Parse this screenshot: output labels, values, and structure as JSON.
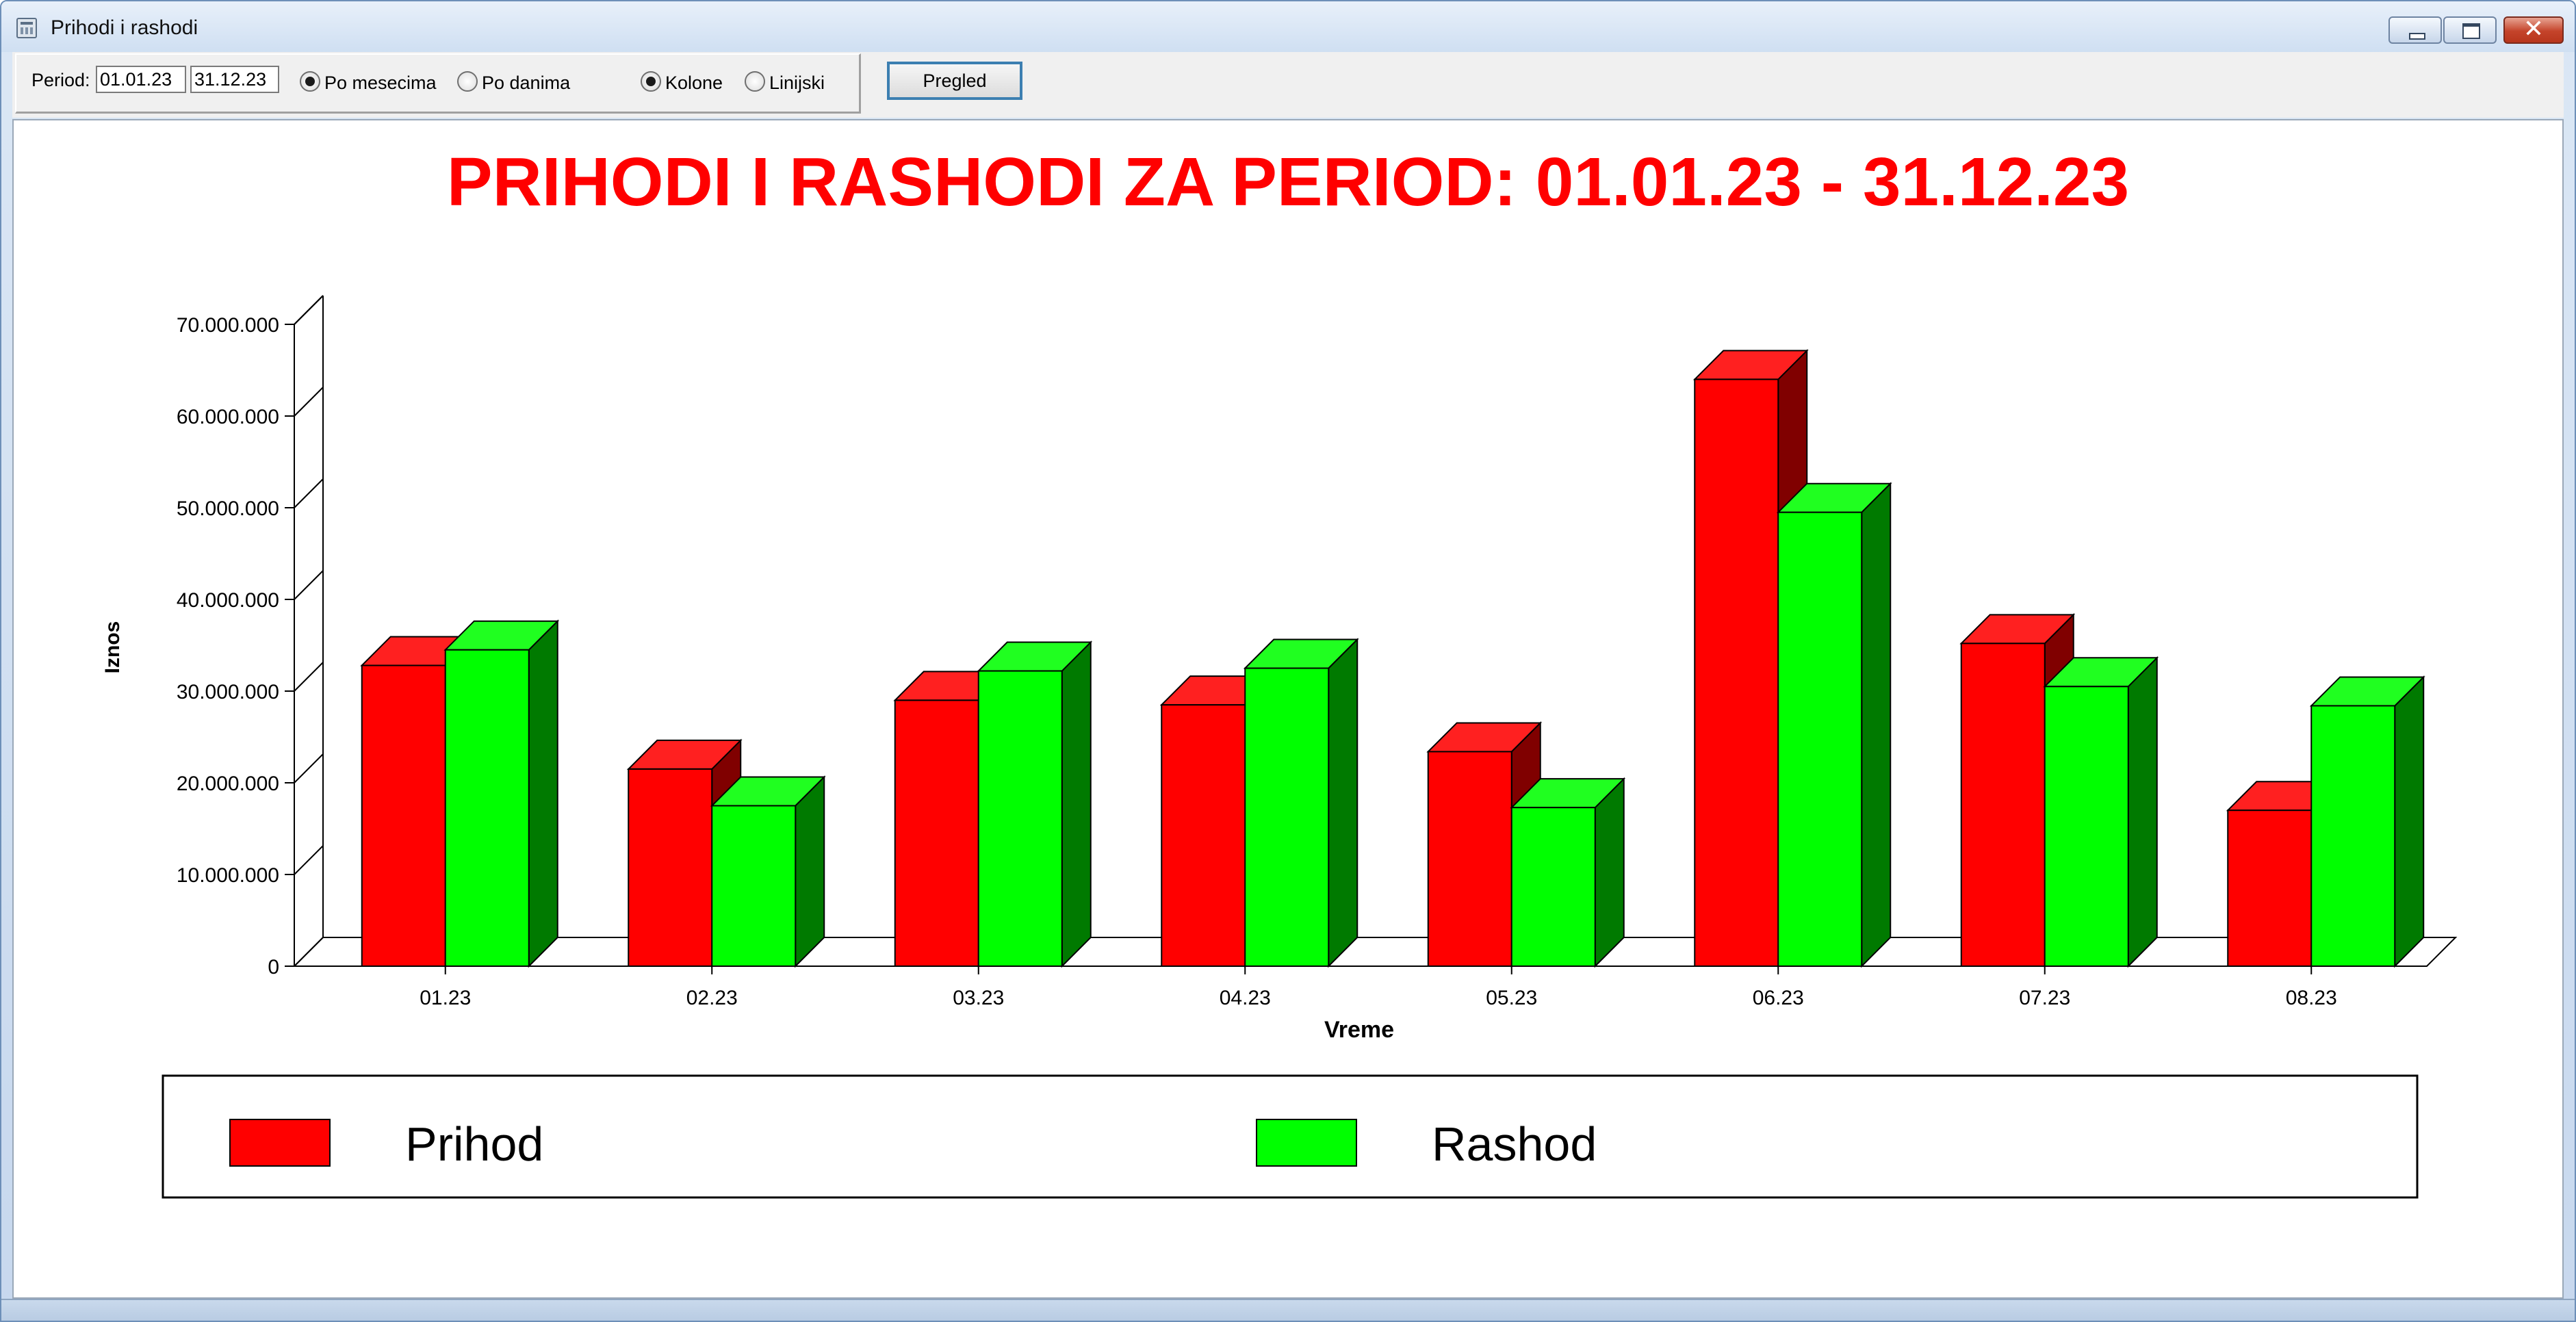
{
  "window": {
    "title": "Prihodi i rashodi"
  },
  "toolbar": {
    "period_label": "Period:",
    "date_from": "01.01.23",
    "date_to": "31.12.23",
    "radio_monthly": "Po mesecima",
    "radio_daily": "Po danima",
    "radio_columns": "Kolone",
    "radio_lines": "Linijski",
    "pregled_button": "Pregled"
  },
  "chart_data": {
    "type": "bar",
    "title": "PRIHODI I RASHODI ZA PERIOD: 01.01.23 - 31.12.23",
    "xlabel": "Vreme",
    "ylabel": "Iznos",
    "ylim": [
      0,
      70000000
    ],
    "yticks": [
      "0",
      "10.000.000",
      "20.000.000",
      "30.000.000",
      "40.000.000",
      "50.000.000",
      "60.000.000",
      "70.000.000"
    ],
    "categories": [
      "01.23",
      "02.23",
      "03.23",
      "04.23",
      "05.23",
      "06.23",
      "07.23",
      "08.23"
    ],
    "series": [
      {
        "name": "Prihod",
        "color": "#ff0000",
        "values": [
          32800000,
          21500000,
          29000000,
          28500000,
          23400000,
          64000000,
          35200000,
          17000000
        ]
      },
      {
        "name": "Rashod",
        "color": "#00ff00",
        "values": [
          34500000,
          17500000,
          32200000,
          32500000,
          17300000,
          49500000,
          30500000,
          28400000
        ]
      }
    ],
    "legend_position": "bottom",
    "style": "3d"
  }
}
